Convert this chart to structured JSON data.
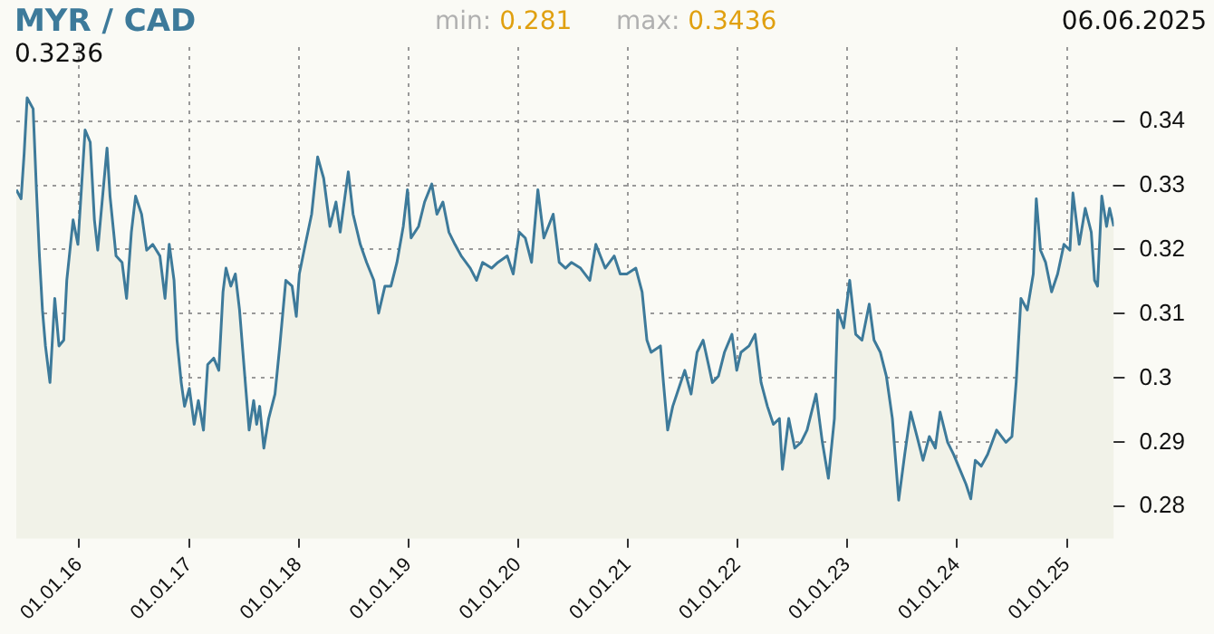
{
  "chart_data": {
    "type": "area",
    "title": "MYR / CAD",
    "annotations": [
      "min: 0.281",
      "max: 0.3436",
      "06.06.2025",
      "0.3236"
    ],
    "xlim": [
      "2015-06-06",
      "2025-06-06"
    ],
    "xticks": [
      {
        "value": "2016-01-01",
        "label": "01.01.16"
      },
      {
        "value": "2017-01-01",
        "label": "01.01.17"
      },
      {
        "value": "2018-01-01",
        "label": "01.01.18"
      },
      {
        "value": "2019-01-01",
        "label": "01.01.19"
      },
      {
        "value": "2020-01-01",
        "label": "01.01.20"
      },
      {
        "value": "2021-01-01",
        "label": "01.01.21"
      },
      {
        "value": "2022-01-01",
        "label": "01.01.22"
      },
      {
        "value": "2023-01-01",
        "label": "01.01.23"
      },
      {
        "value": "2024-01-01",
        "label": "01.01.24"
      },
      {
        "value": "2025-01-01",
        "label": "01.01.25"
      }
    ],
    "ylim": [
      0.275,
      0.3515
    ],
    "yticks": [
      0.28,
      0.29,
      0.3,
      0.31,
      0.32,
      0.33,
      0.34
    ],
    "grid": true,
    "legend": false,
    "marker": "none",
    "line_style": "solid",
    "series": [
      {
        "color": "#3d7a9a",
        "x": [
          "2015-06-06",
          "2015-06-22",
          "2015-07-02",
          "2015-07-12",
          "2015-08-01",
          "2015-08-12",
          "2015-08-22",
          "2015-09-01",
          "2015-09-11",
          "2015-09-26",
          "2015-10-12",
          "2015-10-26",
          "2015-11-11",
          "2015-11-21",
          "2015-12-12",
          "2015-12-28",
          "2016-01-11",
          "2016-01-21",
          "2016-02-07",
          "2016-02-21",
          "2016-03-03",
          "2016-03-23",
          "2016-04-03",
          "2016-04-13",
          "2016-05-03",
          "2016-05-23",
          "2016-06-07",
          "2016-06-23",
          "2016-07-07",
          "2016-07-27",
          "2016-08-13",
          "2016-09-02",
          "2016-09-26",
          "2016-10-13",
          "2016-10-27",
          "2016-11-12",
          "2016-11-22",
          "2016-12-06",
          "2016-12-17",
          "2017-01-02",
          "2017-01-18",
          "2017-02-01",
          "2017-02-18",
          "2017-03-04",
          "2017-03-24",
          "2017-04-10",
          "2017-04-24",
          "2017-05-04",
          "2017-05-20",
          "2017-06-04",
          "2017-06-18",
          "2017-07-04",
          "2017-07-20",
          "2017-08-04",
          "2017-08-14",
          "2017-08-24",
          "2017-09-07",
          "2017-09-23",
          "2017-10-14",
          "2017-10-30",
          "2017-11-19",
          "2017-12-10",
          "2017-12-24",
          "2018-01-03",
          "2018-01-23",
          "2018-02-13",
          "2018-03-05",
          "2018-03-25",
          "2018-04-15",
          "2018-05-05",
          "2018-05-19",
          "2018-06-04",
          "2018-06-15",
          "2018-07-01",
          "2018-07-25",
          "2018-08-15",
          "2018-09-08",
          "2018-09-24",
          "2018-10-15",
          "2018-11-04",
          "2018-11-24",
          "2018-12-15",
          "2018-12-29",
          "2019-01-10",
          "2019-02-04",
          "2019-02-24",
          "2019-03-20",
          "2019-04-06",
          "2019-04-26",
          "2019-05-16",
          "2019-06-05",
          "2019-06-26",
          "2019-07-26",
          "2019-08-16",
          "2019-09-05",
          "2019-10-05",
          "2019-10-26",
          "2019-11-26",
          "2019-12-16",
          "2020-01-05",
          "2020-01-25",
          "2020-02-15",
          "2020-03-07",
          "2020-03-27",
          "2020-04-27",
          "2020-05-17",
          "2020-06-07",
          "2020-06-27",
          "2020-07-27",
          "2020-08-27",
          "2020-09-16",
          "2020-10-17",
          "2020-11-16",
          "2020-12-06",
          "2020-12-28",
          "2021-01-27",
          "2021-02-17",
          "2021-03-05",
          "2021-03-19",
          "2021-04-19",
          "2021-04-29",
          "2021-05-13",
          "2021-05-30",
          "2021-06-19",
          "2021-07-09",
          "2021-07-30",
          "2021-08-19",
          "2021-09-08",
          "2021-10-09",
          "2021-10-29",
          "2021-11-18",
          "2021-12-13",
          "2021-12-29",
          "2022-01-12",
          "2022-02-08",
          "2022-02-28",
          "2022-03-20",
          "2022-04-10",
          "2022-04-30",
          "2022-05-20",
          "2022-05-30",
          "2022-06-20",
          "2022-07-10",
          "2022-07-31",
          "2022-08-20",
          "2022-09-19",
          "2022-10-10",
          "2022-10-30",
          "2022-11-19",
          "2022-11-30",
          "2022-12-20",
          "2023-01-09",
          "2023-01-29",
          "2023-02-19",
          "2023-03-15",
          "2023-03-31",
          "2023-04-21",
          "2023-05-11",
          "2023-05-31",
          "2023-06-21",
          "2023-07-11",
          "2023-07-31",
          "2023-08-21",
          "2023-09-10",
          "2023-10-01",
          "2023-10-21",
          "2023-11-06",
          "2023-12-01",
          "2023-12-21",
          "2024-01-06",
          "2024-01-31",
          "2024-02-16",
          "2024-03-02",
          "2024-03-22",
          "2024-04-12",
          "2024-05-12",
          "2024-06-12",
          "2024-07-02",
          "2024-07-16",
          "2024-08-01",
          "2024-08-22",
          "2024-09-11",
          "2024-09-21",
          "2024-10-05",
          "2024-10-22",
          "2024-11-11",
          "2024-12-01",
          "2024-12-22",
          "2025-01-11",
          "2025-01-21",
          "2025-02-11",
          "2025-03-03",
          "2025-03-23",
          "2025-04-03",
          "2025-04-13",
          "2025-04-27",
          "2025-05-13",
          "2025-05-23",
          "2025-06-06"
        ],
        "values": [
          0.3293,
          0.3279,
          0.3349,
          0.3436,
          0.3419,
          0.3293,
          0.319,
          0.3106,
          0.305,
          0.2993,
          0.3124,
          0.305,
          0.3059,
          0.3152,
          0.3246,
          0.3208,
          0.3311,
          0.3386,
          0.3367,
          0.3246,
          0.3199,
          0.3302,
          0.3358,
          0.3283,
          0.319,
          0.318,
          0.3124,
          0.3227,
          0.3283,
          0.3255,
          0.3199,
          0.3208,
          0.319,
          0.3124,
          0.3208,
          0.3152,
          0.3059,
          0.2993,
          0.2956,
          0.2984,
          0.2928,
          0.2965,
          0.2919,
          0.3021,
          0.3031,
          0.3012,
          0.3134,
          0.3171,
          0.3143,
          0.3162,
          0.3106,
          0.3012,
          0.2919,
          0.2965,
          0.2928,
          0.2956,
          0.2891,
          0.2937,
          0.2975,
          0.305,
          0.3152,
          0.3143,
          0.3096,
          0.3162,
          0.3208,
          0.3255,
          0.3344,
          0.3311,
          0.3236,
          0.3274,
          0.3227,
          0.3283,
          0.3321,
          0.3255,
          0.3208,
          0.318,
          0.3152,
          0.3101,
          0.3143,
          0.3143,
          0.318,
          0.3236,
          0.3293,
          0.3218,
          0.3236,
          0.3274,
          0.3302,
          0.3255,
          0.3274,
          0.3227,
          0.3208,
          0.319,
          0.3171,
          0.3152,
          0.318,
          0.3171,
          0.318,
          0.319,
          0.3162,
          0.3227,
          0.3218,
          0.318,
          0.3293,
          0.3218,
          0.3255,
          0.318,
          0.3171,
          0.318,
          0.3171,
          0.3152,
          0.3208,
          0.3171,
          0.319,
          0.3162,
          0.3162,
          0.3171,
          0.3134,
          0.3059,
          0.304,
          0.305,
          0.2993,
          0.2919,
          0.2956,
          0.2984,
          0.3012,
          0.2975,
          0.304,
          0.3059,
          0.2993,
          0.3003,
          0.304,
          0.3068,
          0.3012,
          0.304,
          0.305,
          0.3068,
          0.2993,
          0.2956,
          0.2928,
          0.2937,
          0.2858,
          0.2937,
          0.2891,
          0.29,
          0.2919,
          0.2975,
          0.29,
          0.2844,
          0.2937,
          0.3106,
          0.3078,
          0.3152,
          0.3068,
          0.3059,
          0.3115,
          0.3059,
          0.304,
          0.3003,
          0.2937,
          0.281,
          0.2881,
          0.2947,
          0.2909,
          0.2872,
          0.2909,
          0.2891,
          0.2947,
          0.29,
          0.2881,
          0.2863,
          0.2835,
          0.2812,
          0.2872,
          0.2863,
          0.2881,
          0.2919,
          0.29,
          0.2909,
          0.2993,
          0.3124,
          0.3106,
          0.3162,
          0.3279,
          0.3199,
          0.318,
          0.3134,
          0.3162,
          0.3208,
          0.3199,
          0.3288,
          0.3208,
          0.3264,
          0.3227,
          0.3152,
          0.3143,
          0.3283,
          0.3236,
          0.3264,
          0.3236
        ]
      }
    ]
  }
}
